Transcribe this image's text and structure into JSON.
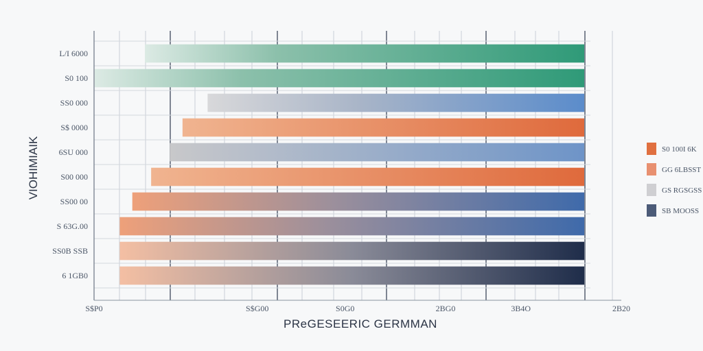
{
  "chart_data": {
    "type": "bar",
    "orientation": "horizontal",
    "title": "",
    "xlabel": "PReGESEERIC GERMMAN",
    "ylabel": "VIOHIMIAIK",
    "x_ticks": [
      {
        "value": 0,
        "label": "S$P0"
      },
      {
        "value": 1300,
        "label": "S$G00"
      },
      {
        "value": 2000,
        "label": "S0G0"
      },
      {
        "value": 2800,
        "label": "2BG0"
      },
      {
        "value": 3400,
        "label": "3B4O"
      },
      {
        "value": 4200,
        "label": "2B20"
      }
    ],
    "xlim": [
      0,
      4200
    ],
    "categories": [
      "L/I 6000",
      "S0 100",
      "SS0 000",
      "S$ 0000",
      "6SU 000",
      "S00 000",
      "SS00 00",
      "S 63G.00",
      "SS0B SSB",
      "6 1GB0"
    ],
    "values": [
      3500,
      3900,
      3000,
      3200,
      3300,
      3450,
      3600,
      3700,
      3700,
      3700
    ],
    "series": [
      {
        "name": "S0 100I 6K",
        "color": "#e07040"
      },
      {
        "name": "GG 6LBSST",
        "color": "#e89070"
      },
      {
        "name": "GS RGSGSS",
        "color": "#cfcfd2"
      },
      {
        "name": "SB MOOSS",
        "color": "#4c5b78"
      }
    ],
    "grid": true,
    "legend": "right"
  }
}
